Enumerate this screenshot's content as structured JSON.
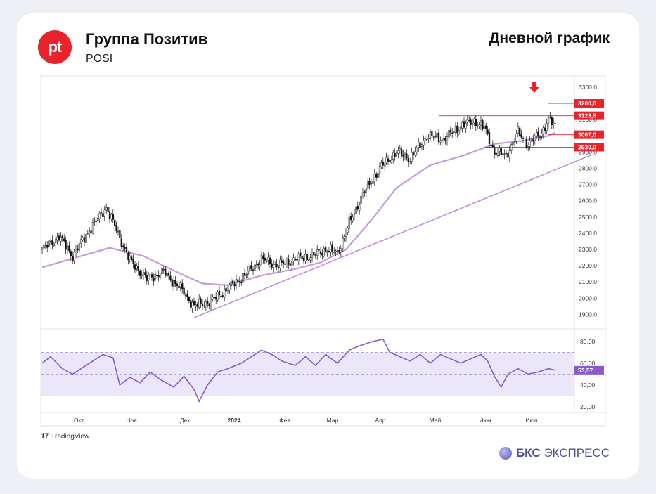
{
  "header": {
    "logo_text": "pt",
    "company": "Группа Позитив",
    "ticker": "POSI",
    "chart_title": "Дневной график"
  },
  "footer": {
    "tradingview": "TradingView",
    "tradingview_logo": "17",
    "bcs_bold": "БКС",
    "bcs_rest": " ЭКСПРЕСС"
  },
  "colors": {
    "accent_red": "#e8232c",
    "ma_line": "#c59be0",
    "trend_line": "#c88be0",
    "rsi_line": "#8a5bd0",
    "rsi_band": "#ece6fb",
    "brand_blue": "#4b4f95"
  },
  "chart_data": [
    {
      "type": "candlestick",
      "symbol": "POSI",
      "timeframe": "daily",
      "x_labels": [
        "Окт",
        "Ноя",
        "Дек",
        "2024",
        "Фев",
        "Мар",
        "Апр",
        "Май",
        "Июн",
        "Июл"
      ],
      "y_ticks": [
        "3300,0",
        "3100,0",
        "3000,0",
        "2900,0",
        "2800,0",
        "2700,0",
        "2600,0",
        "2500,0",
        "2400,0",
        "2300,0",
        "2200,0",
        "2100,0",
        "2000,0",
        "1900,0"
      ],
      "ylim": [
        1850,
        3330
      ],
      "price_levels": [
        {
          "label": "3200,0",
          "value": 3200
        },
        {
          "label": "3123,8",
          "value": 3123.8
        },
        {
          "label": "3007,0",
          "value": 3007
        },
        {
          "label": "2930,0",
          "value": 2930
        }
      ],
      "anchors": [
        [
          0,
          2300
        ],
        [
          10,
          2380
        ],
        [
          18,
          2260
        ],
        [
          28,
          2420
        ],
        [
          38,
          2560
        ],
        [
          44,
          2420
        ],
        [
          52,
          2230
        ],
        [
          62,
          2120
        ],
        [
          72,
          2160
        ],
        [
          82,
          2060
        ],
        [
          90,
          1950
        ],
        [
          100,
          1980
        ],
        [
          110,
          2060
        ],
        [
          120,
          2140
        ],
        [
          130,
          2240
        ],
        [
          140,
          2200
        ],
        [
          150,
          2240
        ],
        [
          160,
          2260
        ],
        [
          168,
          2300
        ],
        [
          175,
          2280
        ],
        [
          182,
          2460
        ],
        [
          190,
          2640
        ],
        [
          200,
          2800
        ],
        [
          210,
          2900
        ],
        [
          218,
          2860
        ],
        [
          228,
          3000
        ],
        [
          238,
          2980
        ],
        [
          248,
          3060
        ],
        [
          256,
          3090
        ],
        [
          262,
          3050
        ],
        [
          268,
          2900
        ],
        [
          275,
          2880
        ],
        [
          282,
          3020
        ],
        [
          288,
          2950
        ],
        [
          296,
          3020
        ],
        [
          300,
          3100
        ],
        [
          304,
          3060
        ]
      ],
      "moving_average": [
        [
          0,
          2190
        ],
        [
          40,
          2310
        ],
        [
          60,
          2260
        ],
        [
          80,
          2160
        ],
        [
          95,
          2090
        ],
        [
          110,
          2080
        ],
        [
          130,
          2140
        ],
        [
          150,
          2180
        ],
        [
          165,
          2220
        ],
        [
          180,
          2300
        ],
        [
          195,
          2480
        ],
        [
          210,
          2680
        ],
        [
          230,
          2820
        ],
        [
          250,
          2880
        ],
        [
          268,
          2950
        ],
        [
          285,
          2970
        ],
        [
          300,
          3000
        ],
        [
          304,
          3020
        ]
      ],
      "trend_line": {
        "from": [
          90,
          1880
        ],
        "to": [
          325,
          2880
        ]
      }
    },
    {
      "type": "line",
      "name": "RSI",
      "y_ticks": [
        "80,00",
        "60,00",
        "40,00",
        "20,00"
      ],
      "ylim": [
        18,
        87
      ],
      "band": [
        30,
        70
      ],
      "mid_line": 50,
      "current_value": "53,57",
      "anchors": [
        [
          0,
          60
        ],
        [
          5,
          66
        ],
        [
          12,
          55
        ],
        [
          18,
          50
        ],
        [
          28,
          60
        ],
        [
          36,
          68
        ],
        [
          42,
          65
        ],
        [
          46,
          40
        ],
        [
          52,
          47
        ],
        [
          58,
          42
        ],
        [
          64,
          52
        ],
        [
          70,
          45
        ],
        [
          78,
          38
        ],
        [
          84,
          48
        ],
        [
          90,
          36
        ],
        [
          93,
          25
        ],
        [
          98,
          40
        ],
        [
          104,
          52
        ],
        [
          110,
          55
        ],
        [
          118,
          60
        ],
        [
          124,
          66
        ],
        [
          130,
          72
        ],
        [
          136,
          68
        ],
        [
          142,
          62
        ],
        [
          150,
          58
        ],
        [
          156,
          66
        ],
        [
          162,
          58
        ],
        [
          168,
          68
        ],
        [
          175,
          60
        ],
        [
          182,
          72
        ],
        [
          188,
          76
        ],
        [
          196,
          80
        ],
        [
          202,
          82
        ],
        [
          206,
          70
        ],
        [
          212,
          66
        ],
        [
          218,
          62
        ],
        [
          224,
          68
        ],
        [
          230,
          60
        ],
        [
          236,
          68
        ],
        [
          242,
          64
        ],
        [
          248,
          60
        ],
        [
          254,
          64
        ],
        [
          260,
          68
        ],
        [
          264,
          62
        ],
        [
          268,
          48
        ],
        [
          272,
          38
        ],
        [
          276,
          50
        ],
        [
          282,
          55
        ],
        [
          288,
          50
        ],
        [
          294,
          52
        ],
        [
          300,
          55
        ],
        [
          304,
          53.57
        ]
      ]
    }
  ]
}
